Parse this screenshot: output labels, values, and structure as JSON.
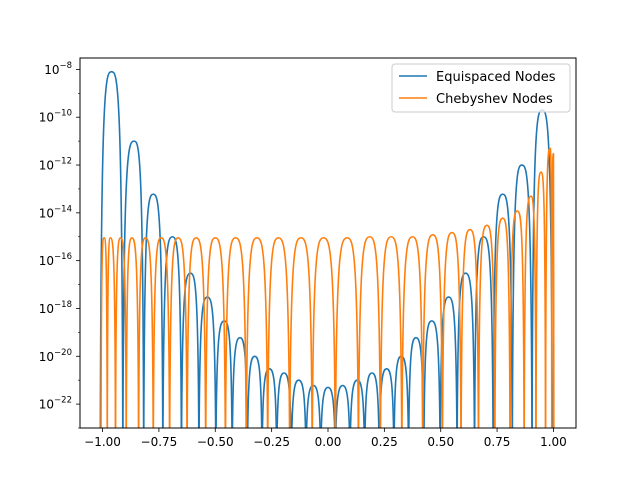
{
  "chart_data": {
    "type": "line",
    "title": "",
    "xlabel": "",
    "ylabel": "",
    "yscale": "log",
    "xlim": [
      -1.1,
      1.1
    ],
    "ylim": [
      1e-23,
      3e-08
    ],
    "grid": false,
    "legend_position": "upper right",
    "x_ticks": [
      {
        "value": -1.0,
        "label": "−1.00"
      },
      {
        "value": -0.75,
        "label": "−0.75"
      },
      {
        "value": -0.5,
        "label": "−0.50"
      },
      {
        "value": -0.25,
        "label": "−0.25"
      },
      {
        "value": 0.0,
        "label": "0.00"
      },
      {
        "value": 0.25,
        "label": "0.25"
      },
      {
        "value": 0.5,
        "label": "0.50"
      },
      {
        "value": 0.75,
        "label": "0.75"
      },
      {
        "value": 1.0,
        "label": "1.00"
      }
    ],
    "y_ticks": [
      {
        "exp": -8,
        "base": "10",
        "sup": "−8"
      },
      {
        "exp": -10,
        "base": "10",
        "sup": "−10"
      },
      {
        "exp": -12,
        "base": "10",
        "sup": "−12"
      },
      {
        "exp": -14,
        "base": "10",
        "sup": "−14"
      },
      {
        "exp": -16,
        "base": "10",
        "sup": "−16"
      },
      {
        "exp": -18,
        "base": "10",
        "sup": "−18"
      },
      {
        "exp": -20,
        "base": "10",
        "sup": "−20"
      },
      {
        "exp": -22,
        "base": "10",
        "sup": "−22"
      }
    ],
    "series": [
      {
        "name": "Equispaced Nodes",
        "color": "#1f77b4",
        "lobe_peaks": [
          {
            "x": -0.96,
            "y": 8e-09
          },
          {
            "x": -0.86,
            "y": 1e-11
          },
          {
            "x": -0.775,
            "y": 6e-14
          },
          {
            "x": -0.69,
            "y": 1e-15
          },
          {
            "x": -0.61,
            "y": 3e-17
          },
          {
            "x": -0.535,
            "y": 3e-18
          },
          {
            "x": -0.46,
            "y": 3e-19
          },
          {
            "x": -0.39,
            "y": 6e-20
          },
          {
            "x": -0.325,
            "y": 1e-20
          },
          {
            "x": -0.26,
            "y": 3e-21
          },
          {
            "x": -0.195,
            "y": 2e-21
          },
          {
            "x": -0.13,
            "y": 1e-21
          },
          {
            "x": -0.065,
            "y": 6e-22
          },
          {
            "x": 0.0,
            "y": 5e-22
          },
          {
            "x": 0.065,
            "y": 6e-22
          },
          {
            "x": 0.13,
            "y": 1e-21
          },
          {
            "x": 0.195,
            "y": 2e-21
          },
          {
            "x": 0.26,
            "y": 3e-21
          },
          {
            "x": 0.325,
            "y": 1e-20
          },
          {
            "x": 0.39,
            "y": 6e-20
          },
          {
            "x": 0.46,
            "y": 3e-19
          },
          {
            "x": 0.535,
            "y": 3e-18
          },
          {
            "x": 0.61,
            "y": 3e-17
          },
          {
            "x": 0.69,
            "y": 1e-15
          },
          {
            "x": 0.775,
            "y": 6e-14
          },
          {
            "x": 0.86,
            "y": 1e-12
          },
          {
            "x": 0.95,
            "y": 2e-10
          }
        ]
      },
      {
        "name": "Chebyshev Nodes",
        "color": "#ff7f0e",
        "lobe_peaks": [
          {
            "x": -0.993,
            "y": 9e-16
          },
          {
            "x": -0.965,
            "y": 9e-16
          },
          {
            "x": -0.92,
            "y": 9e-16
          },
          {
            "x": -0.87,
            "y": 9e-16
          },
          {
            "x": -0.81,
            "y": 9e-16
          },
          {
            "x": -0.74,
            "y": 9e-16
          },
          {
            "x": -0.665,
            "y": 9e-16
          },
          {
            "x": -0.585,
            "y": 9e-16
          },
          {
            "x": -0.5,
            "y": 9e-16
          },
          {
            "x": -0.41,
            "y": 9e-16
          },
          {
            "x": -0.315,
            "y": 9e-16
          },
          {
            "x": -0.22,
            "y": 9e-16
          },
          {
            "x": -0.12,
            "y": 9e-16
          },
          {
            "x": -0.02,
            "y": 9e-16
          },
          {
            "x": 0.085,
            "y": 9e-16
          },
          {
            "x": 0.185,
            "y": 1e-15
          },
          {
            "x": 0.28,
            "y": 1e-15
          },
          {
            "x": 0.375,
            "y": 1e-15
          },
          {
            "x": 0.465,
            "y": 1.2e-15
          },
          {
            "x": 0.55,
            "y": 1.5e-15
          },
          {
            "x": 0.63,
            "y": 2e-15
          },
          {
            "x": 0.705,
            "y": 3e-15
          },
          {
            "x": 0.775,
            "y": 6e-15
          },
          {
            "x": 0.84,
            "y": 1.2e-14
          },
          {
            "x": 0.9,
            "y": 5e-14
          },
          {
            "x": 0.945,
            "y": 5e-13
          },
          {
            "x": 0.985,
            "y": 5e-12
          },
          {
            "x": 1.0,
            "y": 3e-12
          }
        ]
      }
    ]
  }
}
